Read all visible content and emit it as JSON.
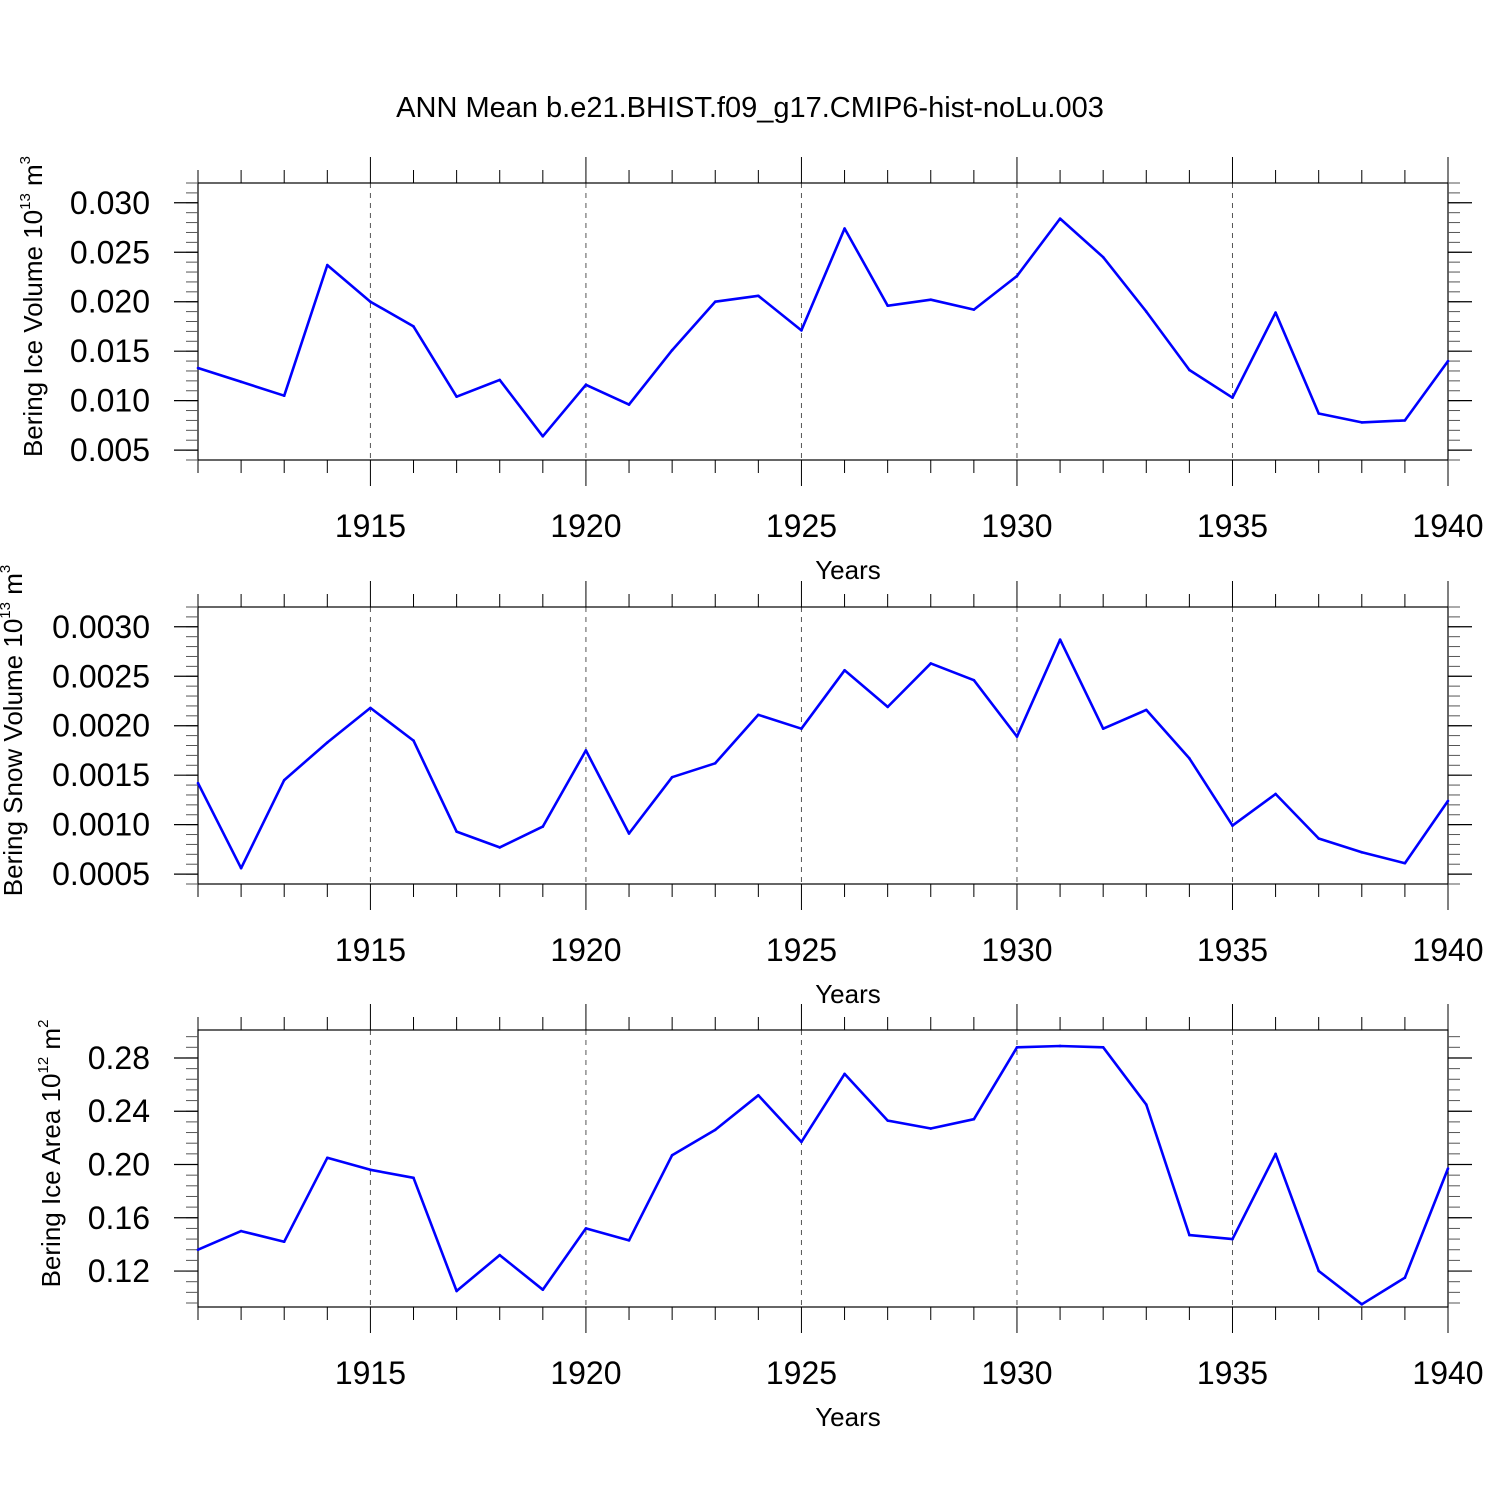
{
  "title": "ANN Mean b.e21.BHIST.f09_g17.CMIP6-hist-noLu.003",
  "line_color": "#0000ff",
  "chart_data": [
    {
      "type": "line",
      "ylabel": {
        "text": "Bering Ice Volume 10",
        "exp": "13",
        "unit": "m",
        "unit_exp": "3"
      },
      "xlabel": "Years",
      "xlim": [
        1911,
        1940
      ],
      "ylim": [
        0.004,
        0.032
      ],
      "yticks": [
        "0.005",
        "0.010",
        "0.015",
        "0.020",
        "0.025",
        "0.030"
      ],
      "yticks_values": [
        0.005,
        0.01,
        0.015,
        0.02,
        0.025,
        0.03
      ],
      "xticks": [
        "1915",
        "1920",
        "1925",
        "1930",
        "1935",
        "1940"
      ],
      "grid": "dashed vertical at major x ticks",
      "x": [
        1911,
        1912,
        1913,
        1914,
        1915,
        1916,
        1917,
        1918,
        1919,
        1920,
        1921,
        1922,
        1923,
        1924,
        1925,
        1926,
        1927,
        1928,
        1929,
        1930,
        1931,
        1932,
        1933,
        1934,
        1935,
        1936,
        1937,
        1938,
        1939,
        1940
      ],
      "values": [
        0.0133,
        0.0119,
        0.0105,
        0.0237,
        0.02,
        0.0175,
        0.0104,
        0.0121,
        0.0064,
        0.0116,
        0.0096,
        0.0151,
        0.02,
        0.0206,
        0.0171,
        0.0274,
        0.0196,
        0.0202,
        0.0192,
        0.0226,
        0.0284,
        0.0245,
        0.019,
        0.0131,
        0.0103,
        0.0189,
        0.0087,
        0.0078,
        0.008,
        0.014
      ]
    },
    {
      "type": "line",
      "ylabel": {
        "text": "Bering Snow Volume 10",
        "exp": "13",
        "unit": "m",
        "unit_exp": "3"
      },
      "xlabel": "Years",
      "xlim": [
        1911,
        1940
      ],
      "ylim": [
        0.0004,
        0.0032
      ],
      "yticks": [
        "0.0005",
        "0.0010",
        "0.0015",
        "0.0020",
        "0.0025",
        "0.0030"
      ],
      "yticks_values": [
        0.0005,
        0.001,
        0.0015,
        0.002,
        0.0025,
        0.003
      ],
      "xticks": [
        "1915",
        "1920",
        "1925",
        "1930",
        "1935",
        "1940"
      ],
      "grid": "dashed vertical at major x ticks",
      "x": [
        1911,
        1912,
        1913,
        1914,
        1915,
        1916,
        1917,
        1918,
        1919,
        1920,
        1921,
        1922,
        1923,
        1924,
        1925,
        1926,
        1927,
        1928,
        1929,
        1930,
        1931,
        1932,
        1933,
        1934,
        1935,
        1936,
        1937,
        1938,
        1939,
        1940
      ],
      "values": [
        0.00142,
        0.00056,
        0.00145,
        0.00183,
        0.00218,
        0.00185,
        0.00093,
        0.00077,
        0.00098,
        0.00175,
        0.00091,
        0.00148,
        0.00162,
        0.00211,
        0.00197,
        0.00256,
        0.00219,
        0.00263,
        0.00246,
        0.00189,
        0.00287,
        0.00197,
        0.00216,
        0.00167,
        0.00099,
        0.00131,
        0.00086,
        0.00072,
        0.00061,
        0.00124
      ]
    },
    {
      "type": "line",
      "ylabel": {
        "text": "Bering Ice Area 10",
        "exp": "12",
        "unit": "m",
        "unit_exp": "2"
      },
      "xlabel": "Years",
      "xlim": [
        1911,
        1940
      ],
      "ylim": [
        0.093,
        0.301
      ],
      "yticks": [
        "0.12",
        "0.16",
        "0.20",
        "0.24",
        "0.28"
      ],
      "yticks_values": [
        0.12,
        0.16,
        0.2,
        0.24,
        0.28
      ],
      "xticks": [
        "1915",
        "1920",
        "1925",
        "1930",
        "1935",
        "1940"
      ],
      "grid": "dashed vertical at major x ticks",
      "x": [
        1911,
        1912,
        1913,
        1914,
        1915,
        1916,
        1917,
        1918,
        1919,
        1920,
        1921,
        1922,
        1923,
        1924,
        1925,
        1926,
        1927,
        1928,
        1929,
        1930,
        1931,
        1932,
        1933,
        1934,
        1935,
        1936,
        1937,
        1938,
        1939,
        1940
      ],
      "values": [
        0.136,
        0.15,
        0.142,
        0.205,
        0.196,
        0.19,
        0.105,
        0.132,
        0.106,
        0.152,
        0.143,
        0.207,
        0.226,
        0.252,
        0.217,
        0.268,
        0.233,
        0.227,
        0.234,
        0.288,
        0.289,
        0.288,
        0.245,
        0.147,
        0.144,
        0.208,
        0.12,
        0.095,
        0.115,
        0.197
      ]
    }
  ]
}
